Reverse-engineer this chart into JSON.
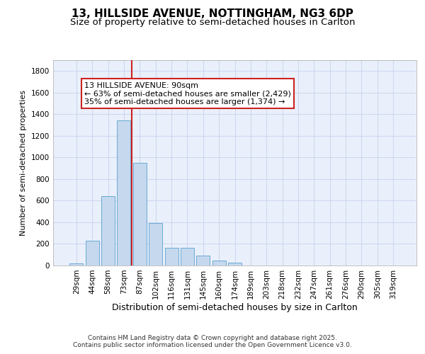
{
  "title1": "13, HILLSIDE AVENUE, NOTTINGHAM, NG3 6DP",
  "title2": "Size of property relative to semi-detached houses in Carlton",
  "xlabel": "Distribution of semi-detached houses by size in Carlton",
  "ylabel": "Number of semi-detached properties",
  "categories": [
    "29sqm",
    "44sqm",
    "58sqm",
    "73sqm",
    "87sqm",
    "102sqm",
    "116sqm",
    "131sqm",
    "145sqm",
    "160sqm",
    "174sqm",
    "189sqm",
    "203sqm",
    "218sqm",
    "232sqm",
    "247sqm",
    "261sqm",
    "276sqm",
    "290sqm",
    "305sqm",
    "319sqm"
  ],
  "values": [
    20,
    230,
    640,
    1340,
    950,
    390,
    165,
    165,
    90,
    45,
    25,
    0,
    0,
    0,
    0,
    0,
    0,
    0,
    0,
    0,
    0
  ],
  "bar_color": "#c5d8ee",
  "bar_edge_color": "#6aaad4",
  "annotation_line1": "13 HILLSIDE AVENUE: 90sqm",
  "annotation_line2": "← 63% of semi-detached houses are smaller (2,429)",
  "annotation_line3": "35% of semi-detached houses are larger (1,374) →",
  "vline_color": "#cc2222",
  "annotation_box_edgecolor": "#cc2222",
  "bg_color": "#eaf0fb",
  "grid_color": "#cdd8f0",
  "footer1": "Contains HM Land Registry data © Crown copyright and database right 2025.",
  "footer2": "Contains public sector information licensed under the Open Government Licence v3.0.",
  "ylim": [
    0,
    1900
  ],
  "yticks": [
    0,
    200,
    400,
    600,
    800,
    1000,
    1200,
    1400,
    1600,
    1800
  ],
  "vline_x": 3.5,
  "title1_fontsize": 11,
  "title2_fontsize": 9.5,
  "ylabel_fontsize": 8,
  "xlabel_fontsize": 9,
  "tick_fontsize": 7.5,
  "annot_fontsize": 8
}
